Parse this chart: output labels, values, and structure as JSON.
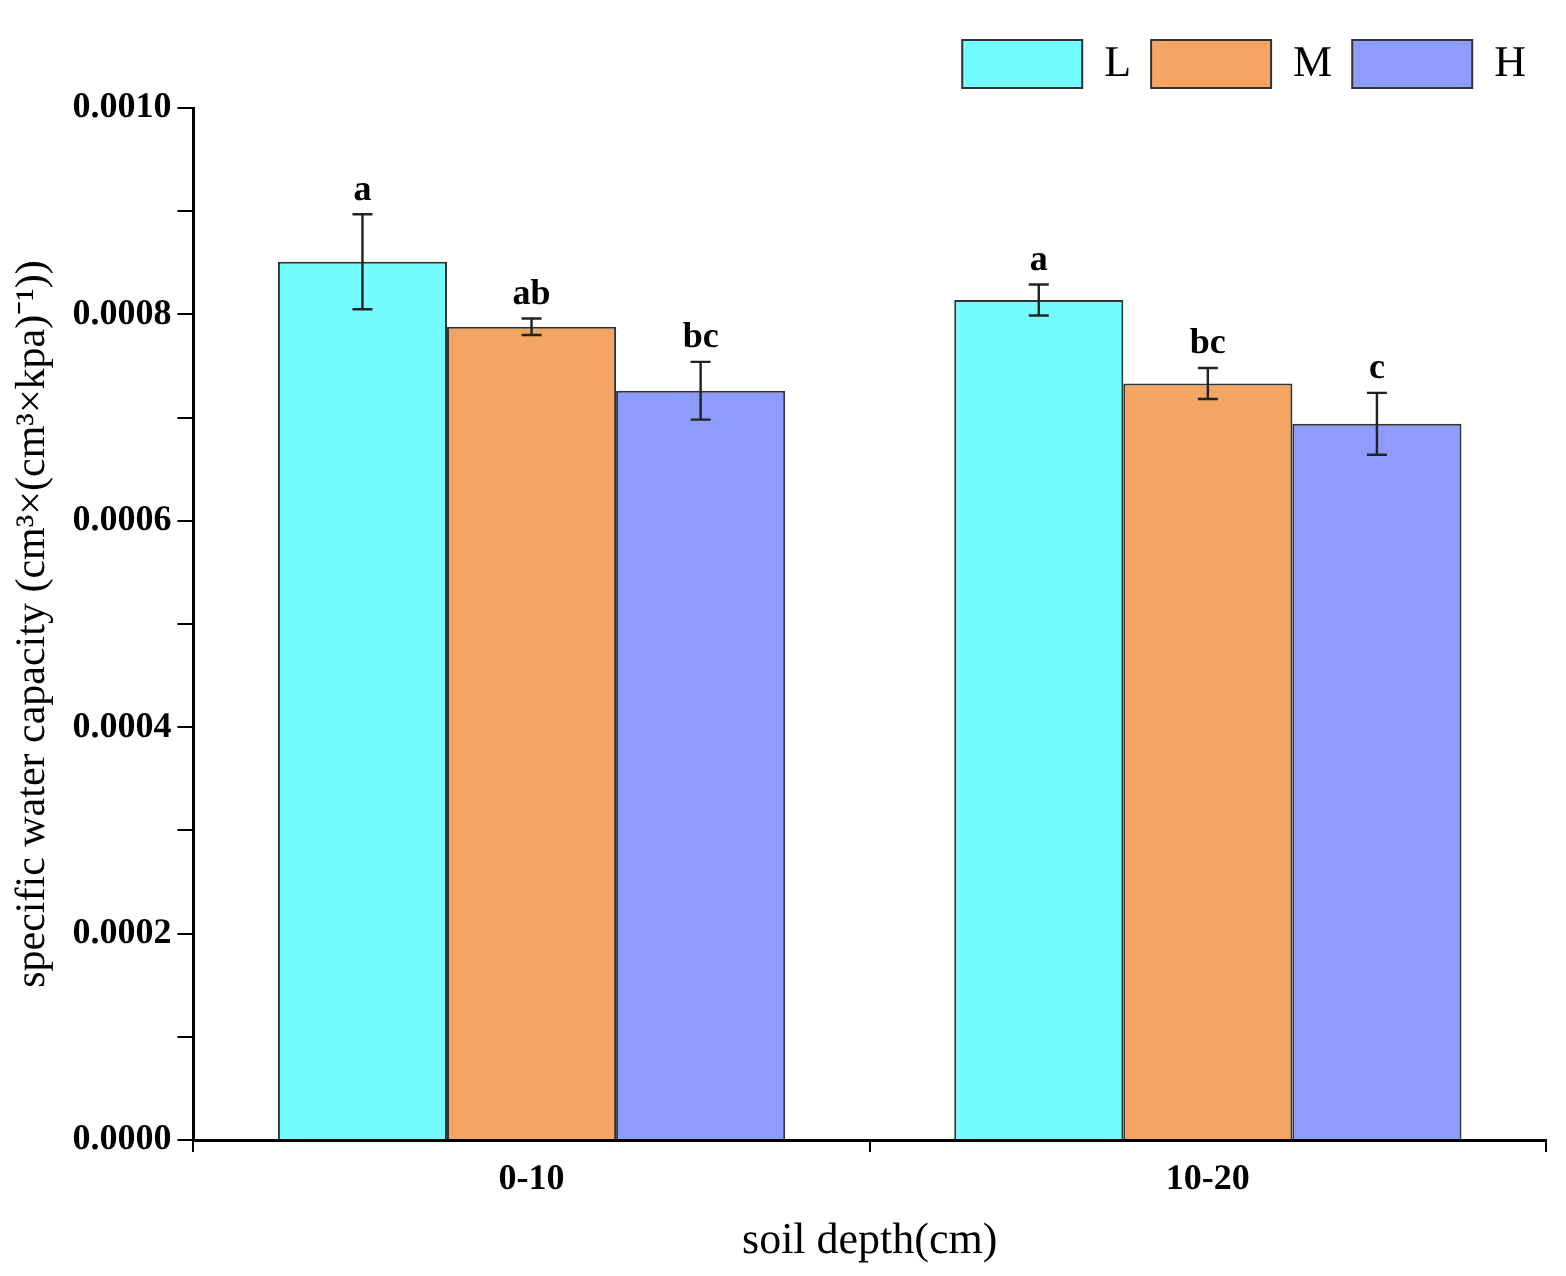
{
  "chart_data": {
    "type": "bar",
    "xlabel": "soil depth(cm)",
    "ylabel": "specific water capacity (cm³×(cm³×kpa)⁻¹))",
    "categories": [
      "0-10",
      "10-20"
    ],
    "series": [
      {
        "name": "L",
        "color": "#73fdff",
        "values": [
          0.000851,
          0.000814
        ],
        "errors": [
          4.6e-05,
          1.5e-05
        ],
        "value_labels": [
          "a",
          "a"
        ]
      },
      {
        "name": "M",
        "color": "#f4a563",
        "values": [
          0.000788,
          0.000733
        ],
        "errors": [
          8e-06,
          1.5e-05
        ],
        "value_labels": [
          "ab",
          "bc"
        ]
      },
      {
        "name": "H",
        "color": "#8f9cff",
        "values": [
          0.000726,
          0.000694
        ],
        "errors": [
          2.8e-05,
          3e-05
        ],
        "value_labels": [
          "bc",
          "c"
        ]
      }
    ],
    "ylim": [
      0,
      0.001
    ],
    "yticks": [
      {
        "value": 0,
        "label": "0.0000"
      },
      {
        "value": 0.0001,
        "label": null
      },
      {
        "value": 0.0002,
        "label": "0.0002"
      },
      {
        "value": 0.0003,
        "label": null
      },
      {
        "value": 0.0004,
        "label": "0.0004"
      },
      {
        "value": 0.0005,
        "label": null
      },
      {
        "value": 0.0006,
        "label": "0.0006"
      },
      {
        "value": 0.0007,
        "label": null
      },
      {
        "value": 0.0008,
        "label": "0.0008"
      },
      {
        "value": 0.0009,
        "label": null
      },
      {
        "value": 0.001,
        "label": "0.0010"
      }
    ],
    "grid": false,
    "legend": "top right"
  }
}
